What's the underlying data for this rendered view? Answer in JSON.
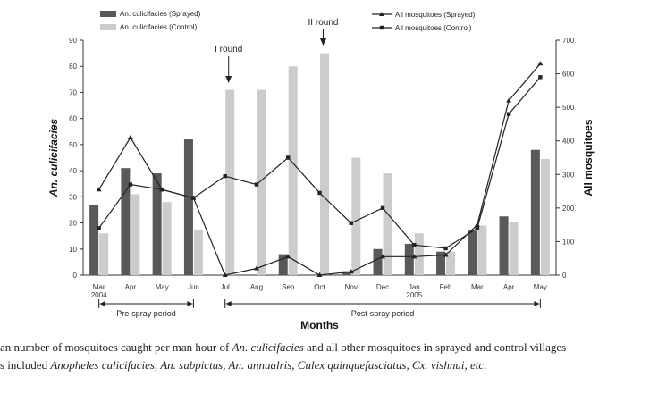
{
  "chart_data": {
    "type": "bar",
    "categories": [
      "Mar\n2004",
      "Apr",
      "May",
      "Jun",
      "Jul",
      "Aug",
      "Sep",
      "Oct",
      "Nov",
      "Dec",
      "Jan\n2005",
      "Feb",
      "Mar",
      "Apr",
      "May"
    ],
    "xlabel": "Months",
    "ylabel_left": "An. culicifacies",
    "ylabel_right": "All mosquitoes",
    "ylim_left": [
      0,
      90
    ],
    "yticks_left": [
      0,
      10,
      20,
      30,
      40,
      50,
      60,
      70,
      80,
      90
    ],
    "ylim_right": [
      0,
      700
    ],
    "yticks_right": [
      0,
      100,
      200,
      300,
      400,
      500,
      600,
      700
    ],
    "bar_series": [
      {
        "name": "An. culicifacies (Sprayed)",
        "color": "#595959",
        "values": [
          27,
          41,
          39,
          52,
          0,
          0,
          8,
          0,
          1.5,
          10,
          12,
          9,
          17,
          22.5,
          48
        ]
      },
      {
        "name": "An. culicifacies (Control)",
        "color": "#cccccc",
        "values": [
          16,
          31,
          28,
          17.5,
          71,
          71,
          80,
          85,
          45,
          39,
          16,
          9,
          19,
          20.5,
          44.5
        ]
      }
    ],
    "line_series": [
      {
        "name": "All mosquitoes (Sprayed)",
        "marker": "triangle",
        "values": [
          255,
          410,
          255,
          230,
          0,
          20,
          55,
          0,
          10,
          55,
          55,
          60,
          150,
          520,
          630
        ]
      },
      {
        "name": "All mosquitoes (Control)",
        "marker": "square",
        "values": [
          140,
          270,
          255,
          230,
          295,
          270,
          350,
          245,
          155,
          200,
          90,
          80,
          140,
          480,
          590
        ]
      }
    ],
    "legend_placement": "top",
    "annotations": [
      {
        "text": "I round",
        "category_index": 4
      },
      {
        "text": "II round",
        "category_index": 7
      }
    ],
    "periods": [
      {
        "text": "Pre-spray period",
        "from": 0,
        "to": 3
      },
      {
        "text": "Post-spray period",
        "from": 4,
        "to": 14
      }
    ]
  },
  "caption": {
    "line1_before": "an number of mosquitoes caught per man hour of ",
    "line1_species": "An. culicifacies",
    "line1_after": " and all other mosquitoes in sprayed and control villages",
    "line2_before": "s included ",
    "line2_species": "Anopheles culicifacies, An. subpictus, An. annualris, Culex quinquefasciatus, Cx. vishnui, etc",
    "line2_after": "."
  }
}
